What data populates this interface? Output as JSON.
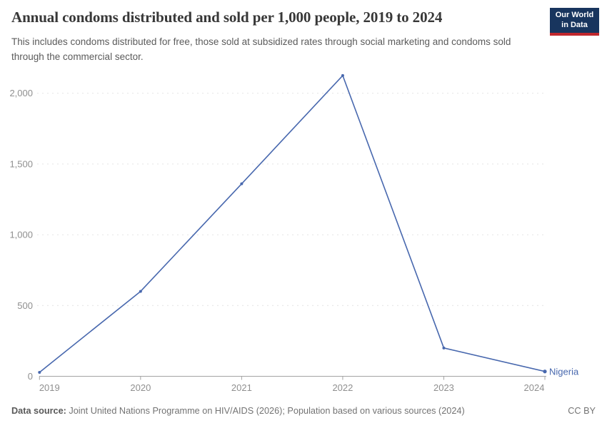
{
  "header": {
    "title": "Annual condoms distributed and sold per 1,000 people, 2019 to 2024",
    "subtitle": "This includes condoms distributed for free, those sold at subsidized rates through social marketing and condoms sold through the commercial sector.",
    "logo": {
      "line1": "Our World",
      "line2": "in Data",
      "bg_color": "#18355e",
      "accent_color": "#c0272d"
    }
  },
  "chart_data": {
    "type": "line",
    "title": "Annual condoms distributed and sold per 1,000 people, 2019 to 2024",
    "x": [
      2019,
      2020,
      2021,
      2022,
      2023,
      2024
    ],
    "x_tick_labels": [
      "2019",
      "2020",
      "2021",
      "2022",
      "2023",
      "2024"
    ],
    "series": [
      {
        "name": "Nigeria",
        "color": "#4868ae",
        "values": [
          28,
          600,
          1360,
          2125,
          200,
          34
        ]
      }
    ],
    "y_ticks": {
      "values": [
        0,
        500,
        1000,
        1500,
        2000
      ],
      "labels": [
        "0",
        "500",
        "1,000",
        "1,500",
        "2,000"
      ]
    },
    "ylim": [
      0,
      2200
    ],
    "xlabel": "",
    "ylabel": "",
    "grid": "horizontal-dashed",
    "legend_position": "line-end-label",
    "grid_color": "#e3e3e3",
    "axis_color": "#a3a3a3"
  },
  "footer": {
    "data_source_label": "Data source:",
    "data_source": "Joint United Nations Programme on HIV/AIDS (2026); Population based on various sources (2024)",
    "license": "CC BY"
  }
}
